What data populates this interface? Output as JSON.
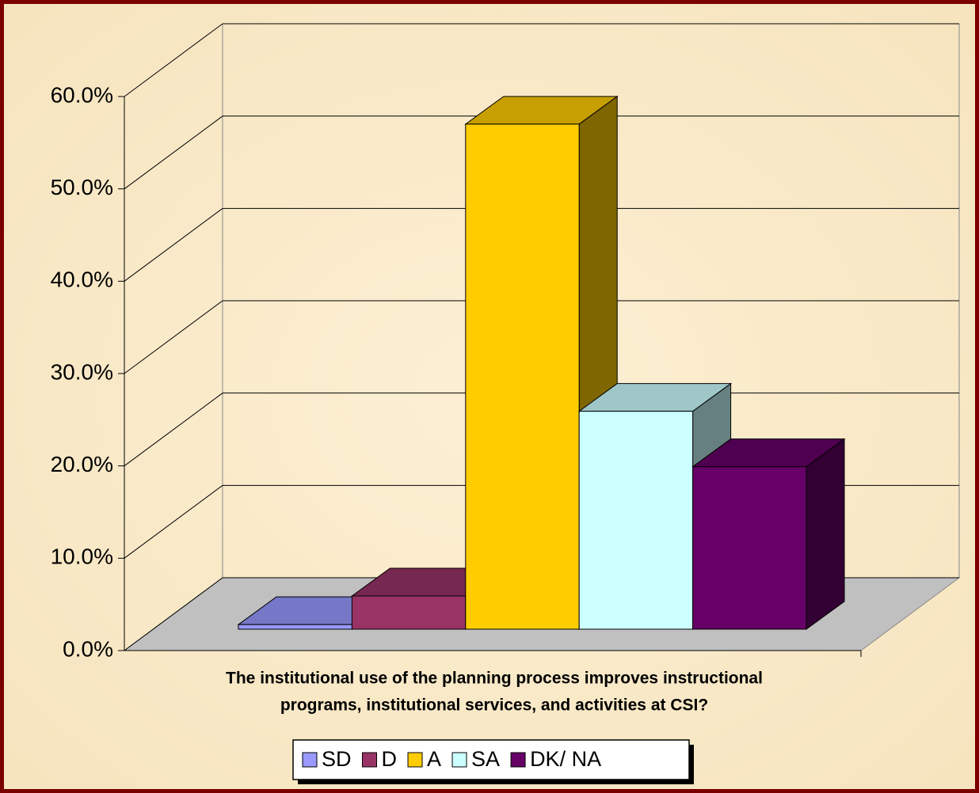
{
  "chart_data": {
    "type": "bar3d",
    "x_label": [
      "The institutional use of the planning process improves instructional",
      "programs, institutional services, and activities at CSI?"
    ],
    "series": [
      {
        "name": "SD",
        "color": "#9999ff",
        "values": [
          0.5
        ]
      },
      {
        "name": "D",
        "color": "#993366",
        "values": [
          3.6
        ]
      },
      {
        "name": "A",
        "color": "#ffcc00",
        "values": [
          54.7
        ]
      },
      {
        "name": "SA",
        "color": "#ccffff",
        "values": [
          23.6
        ]
      },
      {
        "name": "DK/ NA",
        "color": "#660066",
        "values": [
          17.6
        ]
      }
    ],
    "ylim": [
      0,
      60
    ],
    "yticks": [
      {
        "value": 0,
        "label": "0.0%"
      },
      {
        "value": 10,
        "label": "10.0%"
      },
      {
        "value": 20,
        "label": "20.0%"
      },
      {
        "value": 30,
        "label": "30.0%"
      },
      {
        "value": 40,
        "label": "40.0%"
      },
      {
        "value": 50,
        "label": "50.0%"
      },
      {
        "value": 60,
        "label": "60.0%"
      }
    ],
    "grid": true,
    "legend": "bottom"
  }
}
